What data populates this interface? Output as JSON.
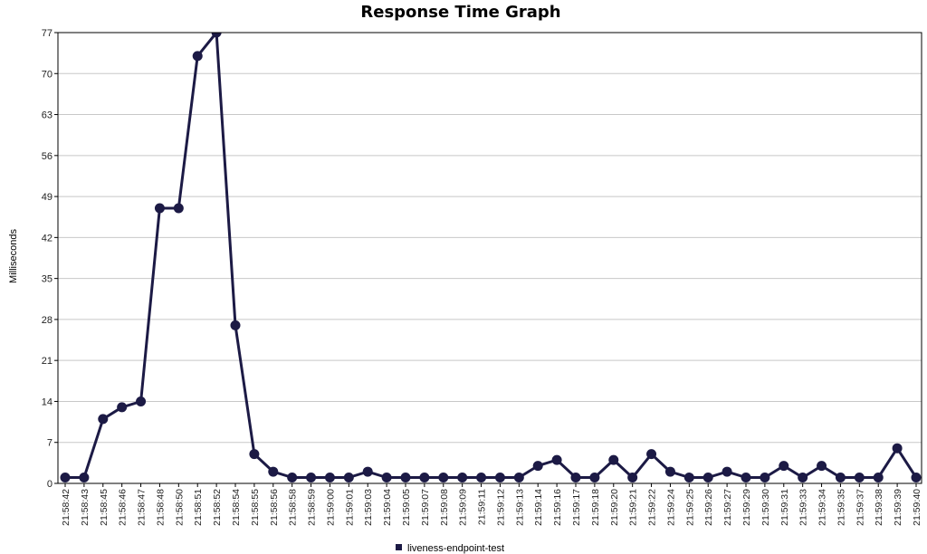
{
  "chart_data": {
    "type": "line",
    "title": "Response Time Graph",
    "xlabel": "",
    "ylabel": "Milliseconds",
    "ylim": [
      0,
      77
    ],
    "yticks": [
      0,
      7,
      14,
      21,
      28,
      35,
      42,
      49,
      56,
      63,
      70,
      77
    ],
    "grid": true,
    "legend_position": "bottom",
    "x_ticks": [
      "21:58:42",
      "21:58:43",
      "21:58:45",
      "21:58:46",
      "21:58:47",
      "21:58:48",
      "21:58:50",
      "21:58:51",
      "21:58:52",
      "21:58:54",
      "21:58:55",
      "21:58:56",
      "21:58:58",
      "21:58:59",
      "21:59:00",
      "21:59:01",
      "21:59:03",
      "21:59:04",
      "21:59:05",
      "21:59:07",
      "21:59:08",
      "21:59:09",
      "21:59:11",
      "21:59:12",
      "21:59:13",
      "21:59:14",
      "21:59:16",
      "21:59:17",
      "21:59:18",
      "21:59:20",
      "21:59:21",
      "21:59:22",
      "21:59:24",
      "21:59:25",
      "21:59:26",
      "21:59:27",
      "21:59:29",
      "21:59:30",
      "21:59:31",
      "21:59:33",
      "21:59:34",
      "21:59:35",
      "21:59:37",
      "21:59:38",
      "21:59:39",
      "21:59:40"
    ],
    "series": [
      {
        "name": "liveness-endpoint-test",
        "color": "#1c1a45",
        "x": [
          0,
          1,
          2,
          3,
          4,
          5,
          6,
          7,
          8,
          9,
          10,
          11,
          12,
          13,
          14,
          15,
          16,
          17,
          18,
          19,
          20,
          21,
          22,
          23,
          24,
          25,
          26,
          27,
          28,
          29,
          30,
          31,
          32,
          33,
          34,
          35,
          36,
          37,
          38,
          39,
          40,
          41,
          42,
          43,
          44,
          45
        ],
        "y": [
          1,
          1,
          11,
          13,
          14,
          47,
          47,
          73,
          77,
          27,
          5,
          2,
          1,
          1,
          1,
          1,
          2,
          1,
          1,
          1,
          1,
          1,
          1,
          1,
          1,
          3,
          4,
          1,
          1,
          4,
          1,
          5,
          2,
          1,
          1,
          2,
          1,
          1,
          3,
          1,
          3,
          1,
          1,
          1,
          6,
          1
        ]
      }
    ]
  }
}
